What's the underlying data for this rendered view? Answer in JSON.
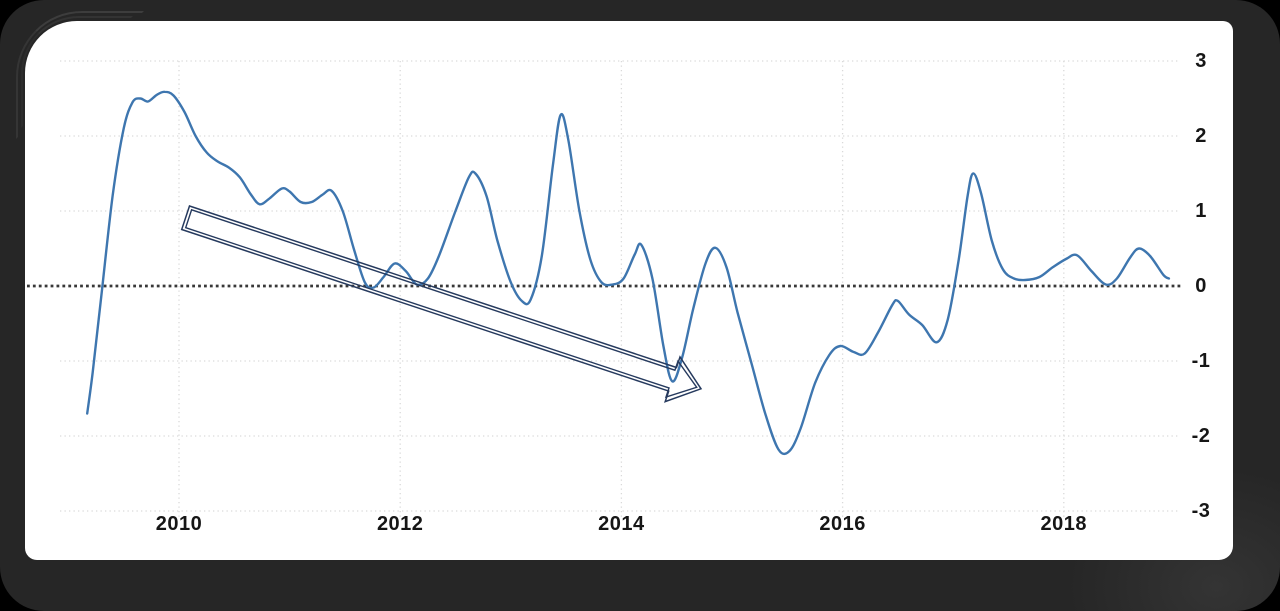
{
  "frame": {
    "background_color": "#000000",
    "ring_color": "#2a2a2a",
    "panel_color": "#ffffff"
  },
  "chart_data": {
    "type": "line",
    "title": "",
    "xlabel": "",
    "ylabel": "",
    "x_axis": {
      "ticks": [
        2010,
        2012,
        2014,
        2016,
        2018
      ],
      "tick_labels": [
        "2010",
        "2012",
        "2014",
        "2016",
        "2018"
      ],
      "range": [
        2008.92,
        2019.05
      ],
      "label_color": "#161616"
    },
    "y_axis": {
      "side": "right",
      "ticks": [
        3,
        2,
        1,
        0,
        -1,
        -2,
        -3
      ],
      "tick_labels": [
        "3",
        "2",
        "1",
        "0",
        "-1",
        "-2",
        "-3"
      ],
      "range": [
        -3,
        3
      ],
      "label_color": "#161616"
    },
    "grid": {
      "horizontal": true,
      "vertical": true,
      "style": "dotted",
      "color": "#d9d9d9"
    },
    "zero_line": {
      "value": 0,
      "style": "dotted",
      "color": "#383838"
    },
    "legend": "none",
    "series": [
      {
        "name": "series-1",
        "color": "#3E76AF",
        "smooth": true,
        "points": [
          [
            2009.17,
            -1.7
          ],
          [
            2009.22,
            -1.15
          ],
          [
            2009.3,
            -0.1
          ],
          [
            2009.4,
            1.2
          ],
          [
            2009.5,
            2.1
          ],
          [
            2009.58,
            2.45
          ],
          [
            2009.65,
            2.5
          ],
          [
            2009.72,
            2.46
          ],
          [
            2009.8,
            2.55
          ],
          [
            2009.87,
            2.59
          ],
          [
            2009.95,
            2.54
          ],
          [
            2010.05,
            2.32
          ],
          [
            2010.15,
            2.0
          ],
          [
            2010.25,
            1.78
          ],
          [
            2010.35,
            1.66
          ],
          [
            2010.45,
            1.58
          ],
          [
            2010.55,
            1.45
          ],
          [
            2010.65,
            1.22
          ],
          [
            2010.73,
            1.09
          ],
          [
            2010.82,
            1.17
          ],
          [
            2010.93,
            1.3
          ],
          [
            2011.0,
            1.26
          ],
          [
            2011.1,
            1.12
          ],
          [
            2011.2,
            1.12
          ],
          [
            2011.3,
            1.22
          ],
          [
            2011.38,
            1.27
          ],
          [
            2011.48,
            1.0
          ],
          [
            2011.58,
            0.5
          ],
          [
            2011.68,
            0.05
          ],
          [
            2011.76,
            -0.02
          ],
          [
            2011.85,
            0.12
          ],
          [
            2011.95,
            0.3
          ],
          [
            2012.05,
            0.2
          ],
          [
            2012.15,
            0.02
          ],
          [
            2012.25,
            0.1
          ],
          [
            2012.35,
            0.4
          ],
          [
            2012.5,
            1.0
          ],
          [
            2012.62,
            1.45
          ],
          [
            2012.68,
            1.5
          ],
          [
            2012.78,
            1.2
          ],
          [
            2012.88,
            0.6
          ],
          [
            2013.0,
            0.05
          ],
          [
            2013.1,
            -0.2
          ],
          [
            2013.18,
            -0.18
          ],
          [
            2013.28,
            0.4
          ],
          [
            2013.38,
            1.6
          ],
          [
            2013.45,
            2.28
          ],
          [
            2013.52,
            1.95
          ],
          [
            2013.62,
            1.0
          ],
          [
            2013.72,
            0.35
          ],
          [
            2013.82,
            0.05
          ],
          [
            2013.92,
            0.02
          ],
          [
            2014.02,
            0.1
          ],
          [
            2014.12,
            0.42
          ],
          [
            2014.18,
            0.55
          ],
          [
            2014.28,
            0.1
          ],
          [
            2014.38,
            -0.8
          ],
          [
            2014.46,
            -1.27
          ],
          [
            2014.55,
            -0.95
          ],
          [
            2014.65,
            -0.3
          ],
          [
            2014.76,
            0.3
          ],
          [
            2014.85,
            0.51
          ],
          [
            2014.95,
            0.25
          ],
          [
            2015.05,
            -0.35
          ],
          [
            2015.18,
            -1.05
          ],
          [
            2015.3,
            -1.7
          ],
          [
            2015.42,
            -2.18
          ],
          [
            2015.52,
            -2.2
          ],
          [
            2015.62,
            -1.9
          ],
          [
            2015.75,
            -1.3
          ],
          [
            2015.88,
            -0.92
          ],
          [
            2015.98,
            -0.8
          ],
          [
            2016.1,
            -0.88
          ],
          [
            2016.2,
            -0.9
          ],
          [
            2016.32,
            -0.62
          ],
          [
            2016.45,
            -0.25
          ],
          [
            2016.5,
            -0.2
          ],
          [
            2016.6,
            -0.38
          ],
          [
            2016.72,
            -0.52
          ],
          [
            2016.85,
            -0.75
          ],
          [
            2016.95,
            -0.45
          ],
          [
            2017.05,
            0.35
          ],
          [
            2017.13,
            1.2
          ],
          [
            2017.18,
            1.5
          ],
          [
            2017.25,
            1.25
          ],
          [
            2017.35,
            0.6
          ],
          [
            2017.45,
            0.22
          ],
          [
            2017.55,
            0.1
          ],
          [
            2017.65,
            0.08
          ],
          [
            2017.78,
            0.12
          ],
          [
            2017.9,
            0.25
          ],
          [
            2018.02,
            0.36
          ],
          [
            2018.12,
            0.41
          ],
          [
            2018.25,
            0.2
          ],
          [
            2018.38,
            0.02
          ],
          [
            2018.48,
            0.1
          ],
          [
            2018.6,
            0.38
          ],
          [
            2018.68,
            0.5
          ],
          [
            2018.78,
            0.4
          ],
          [
            2018.9,
            0.15
          ],
          [
            2018.95,
            0.1
          ]
        ]
      }
    ],
    "annotations": [
      {
        "type": "block-arrow",
        "from": [
          2010.06,
          0.91
        ],
        "to": [
          2014.72,
          -1.37
        ],
        "outline_color": "#263A5E",
        "outline_style": "double",
        "fill": "none"
      }
    ]
  }
}
